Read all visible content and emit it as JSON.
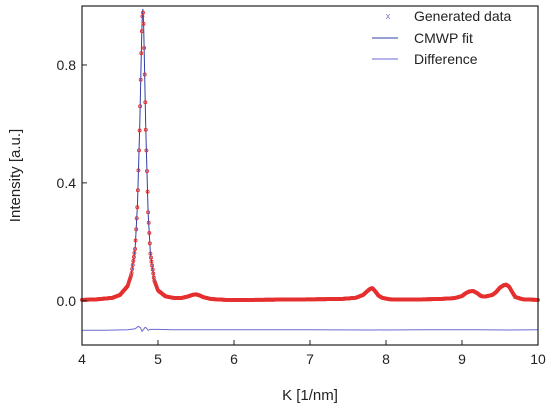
{
  "chart_data": {
    "type": "line",
    "xlabel": "K [1/nm]",
    "ylabel": "Intensity [a.u.]",
    "xlim": [
      4,
      10
    ],
    "ylim": [
      -0.15,
      1.0
    ],
    "xticks": [
      4,
      5,
      6,
      7,
      8,
      9,
      10
    ],
    "yticks": [
      0.0,
      0.4,
      0.8
    ],
    "ytick_labels": [
      "0.0",
      "0.4",
      "0.8"
    ],
    "grid": false,
    "legend_position": "top-right",
    "colors": {
      "generated": "#e53030",
      "fit": "#2f3fa8",
      "difference": "#6a6ad0"
    },
    "series": [
      {
        "name": "Generated data",
        "kind": "points",
        "x": [
          4.0,
          4.2,
          4.4,
          4.5,
          4.6,
          4.65,
          4.7,
          4.73,
          4.76,
          4.78,
          4.79,
          4.8,
          4.81,
          4.82,
          4.84,
          4.87,
          4.9,
          4.95,
          5.0,
          5.1,
          5.2,
          5.3,
          5.4,
          5.45,
          5.5,
          5.55,
          5.6,
          5.7,
          5.9,
          6.2,
          6.6,
          7.0,
          7.4,
          7.6,
          7.7,
          7.75,
          7.8,
          7.82,
          7.85,
          7.9,
          7.95,
          8.05,
          8.3,
          8.7,
          8.9,
          9.0,
          9.05,
          9.1,
          9.15,
          9.2,
          9.25,
          9.3,
          9.4,
          9.45,
          9.5,
          9.55,
          9.58,
          9.62,
          9.66,
          9.7,
          9.8,
          10.0
        ],
        "y": [
          0.003,
          0.005,
          0.01,
          0.02,
          0.05,
          0.09,
          0.18,
          0.33,
          0.6,
          0.84,
          0.94,
          0.99,
          0.94,
          0.83,
          0.58,
          0.3,
          0.16,
          0.07,
          0.035,
          0.015,
          0.01,
          0.009,
          0.015,
          0.02,
          0.022,
          0.018,
          0.012,
          0.006,
          0.003,
          0.003,
          0.004,
          0.005,
          0.006,
          0.01,
          0.02,
          0.032,
          0.042,
          0.043,
          0.035,
          0.018,
          0.01,
          0.005,
          0.004,
          0.006,
          0.009,
          0.016,
          0.026,
          0.032,
          0.033,
          0.026,
          0.016,
          0.014,
          0.02,
          0.03,
          0.045,
          0.053,
          0.055,
          0.048,
          0.03,
          0.013,
          0.005,
          0.003
        ]
      },
      {
        "name": "CMWP fit",
        "kind": "line",
        "x": [
          4.0,
          4.2,
          4.4,
          4.5,
          4.6,
          4.65,
          4.7,
          4.73,
          4.76,
          4.78,
          4.79,
          4.8,
          4.81,
          4.82,
          4.84,
          4.87,
          4.9,
          4.95,
          5.0,
          5.1,
          5.2,
          5.3,
          5.4,
          5.45,
          5.5,
          5.55,
          5.6,
          5.7,
          5.9,
          6.2,
          6.6,
          7.0,
          7.4,
          7.6,
          7.7,
          7.75,
          7.8,
          7.82,
          7.85,
          7.9,
          7.95,
          8.05,
          8.3,
          8.7,
          8.9,
          9.0,
          9.05,
          9.1,
          9.15,
          9.2,
          9.25,
          9.3,
          9.4,
          9.45,
          9.5,
          9.55,
          9.58,
          9.62,
          9.66,
          9.7,
          9.8,
          10.0
        ],
        "y": [
          0.003,
          0.005,
          0.01,
          0.02,
          0.05,
          0.09,
          0.18,
          0.33,
          0.6,
          0.84,
          0.94,
          0.99,
          0.94,
          0.83,
          0.58,
          0.3,
          0.16,
          0.07,
          0.035,
          0.015,
          0.01,
          0.009,
          0.015,
          0.02,
          0.022,
          0.018,
          0.012,
          0.006,
          0.003,
          0.003,
          0.004,
          0.005,
          0.006,
          0.01,
          0.02,
          0.032,
          0.042,
          0.043,
          0.035,
          0.018,
          0.01,
          0.005,
          0.004,
          0.006,
          0.009,
          0.016,
          0.026,
          0.032,
          0.033,
          0.026,
          0.016,
          0.014,
          0.02,
          0.03,
          0.045,
          0.053,
          0.055,
          0.048,
          0.03,
          0.013,
          0.005,
          0.003
        ]
      },
      {
        "name": "Difference",
        "kind": "line",
        "x": [
          4.0,
          4.3,
          4.6,
          4.7,
          4.74,
          4.77,
          4.79,
          4.81,
          4.83,
          4.85,
          4.87,
          4.9,
          5.0,
          5.2,
          6.0,
          7.0,
          7.8,
          8.5,
          9.2,
          9.6,
          10.0
        ],
        "y": [
          -0.1,
          -0.1,
          -0.098,
          -0.095,
          -0.087,
          -0.091,
          -0.104,
          -0.097,
          -0.09,
          -0.093,
          -0.1,
          -0.097,
          -0.097,
          -0.098,
          -0.098,
          -0.098,
          -0.099,
          -0.098,
          -0.098,
          -0.099,
          -0.098
        ]
      }
    ]
  }
}
